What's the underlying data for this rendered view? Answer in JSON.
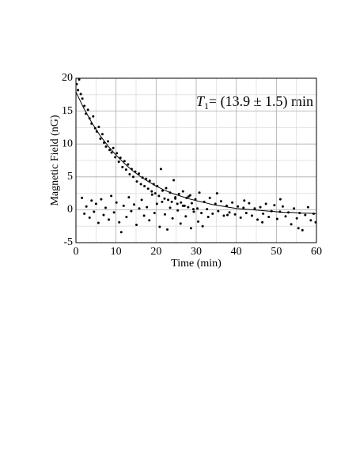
{
  "chart_data": {
    "type": "scatter",
    "xlabel": "Time (min)",
    "ylabel": "Magnetic Field (nG)",
    "annotation": {
      "symbol": "T",
      "subscript": "1",
      "text": "= (13.9 ± 1.5) min"
    },
    "xlim": [
      0,
      60
    ],
    "ylim": [
      -5,
      20
    ],
    "xticks": [
      0,
      10,
      20,
      30,
      40,
      50,
      60
    ],
    "yticks": [
      -5,
      0,
      5,
      10,
      15,
      20
    ],
    "xminorticks": [
      5,
      15,
      25,
      35,
      45,
      55
    ],
    "yminorticks": [
      -2.5,
      2.5,
      7.5,
      12.5,
      17.5
    ],
    "grid": true,
    "color": "#000000",
    "points": {
      "x": [
        0.2,
        0.5,
        0.8,
        1.2,
        1.6,
        2.1,
        2.5,
        3.0,
        3.4,
        3.9,
        4.3,
        4.8,
        5.2,
        5.7,
        6.1,
        6.6,
        7.0,
        7.5,
        8.0,
        8.4,
        8.9,
        9.3,
        9.8,
        10.2,
        10.7,
        11.1,
        11.6,
        12.1,
        12.5,
        13.0,
        13.4,
        13.9,
        14.3,
        14.8,
        15.2,
        15.7,
        16.2,
        16.6,
        17.1,
        17.5,
        18.0,
        18.4,
        18.9,
        19.4,
        19.8,
        20.3,
        20.7,
        21.2,
        21.6,
        22.1,
        22.5,
        23.0,
        23.5,
        23.9,
        24.4,
        24.8,
        25.3,
        25.7,
        26.2,
        26.7,
        27.1,
        27.6,
        28.0,
        28.5,
        28.9,
        29.4,
        29.8,
        30.3,
        30.8,
        31.3,
        32.0,
        32.7,
        33.4,
        34.1,
        34.8,
        35.5,
        36.2,
        36.9,
        37.6,
        38.3,
        39.0,
        39.7,
        40.4,
        41.1,
        41.8,
        42.5,
        43.2,
        43.9,
        44.6,
        45.3,
        46.0,
        46.7,
        47.4,
        48.1,
        48.8,
        49.5,
        50.2,
        50.9,
        51.6,
        52.3,
        53.0,
        53.7,
        54.4,
        55.1,
        55.8,
        56.5,
        57.2,
        57.9,
        58.6,
        59.3,
        59.8,
        1.5,
        2.1,
        2.6,
        3.4,
        3.9,
        4.5,
        5.0,
        5.6,
        6.3,
        6.9,
        7.4,
        8.2,
        8.8,
        9.5,
        10.1,
        10.8,
        11.3,
        11.9,
        12.6,
        13.2,
        13.8,
        14.5,
        15.1,
        15.8,
        16.4,
        17.0,
        17.7,
        18.3,
        19.0,
        19.6,
        20.2,
        20.9,
        21.5,
        22.2,
        22.8,
        23.5,
        24.1,
        24.8,
        25.4,
        26.1,
        26.7,
        27.4,
        28.1,
        28.7,
        29.3,
        30.5,
        31.6,
        33.0,
        35.2,
        37.8,
        42.0,
        46.5,
        51.0,
        55.5
      ],
      "values": [
        19.1,
        18.2,
        19.8,
        17.6,
        16.9,
        15.8,
        14.6,
        15.2,
        13.9,
        13.1,
        14.2,
        12.4,
        11.9,
        12.6,
        10.8,
        11.5,
        10.2,
        9.6,
        10.4,
        9.1,
        8.7,
        9.4,
        8.0,
        8.6,
        7.3,
        7.9,
        6.5,
        7.4,
        6.1,
        6.9,
        5.4,
        6.2,
        5.0,
        5.8,
        4.3,
        5.5,
        3.9,
        4.9,
        3.6,
        4.7,
        3.2,
        4.4,
        2.8,
        3.9,
        2.5,
        3.6,
        2.1,
        6.2,
        2.9,
        1.7,
        3.3,
        1.5,
        2.6,
        1.2,
        4.5,
        1.9,
        0.9,
        2.4,
        1.1,
        2.8,
        0.6,
        1.8,
        0.4,
        2.2,
        1.0,
        -0.3,
        1.6,
        0.2,
        2.6,
        -0.5,
        1.2,
        0.1,
        1.8,
        -0.6,
        0.9,
        -0.2,
        1.3,
        -0.9,
        0.6,
        -0.4,
        1.1,
        -0.7,
        0.5,
        -1.2,
        0.3,
        -0.5,
        1.0,
        -0.9,
        0.2,
        -1.5,
        0.4,
        -0.6,
        0.9,
        -1.1,
        -0.2,
        0.7,
        -1.4,
        -0.3,
        0.5,
        -1.0,
        -0.4,
        -2.2,
        0.2,
        -1.3,
        -0.5,
        -3.1,
        -0.8,
        0.4,
        -1.6,
        -0.6,
        -1.9,
        1.8,
        -0.6,
        0.5,
        -1.2,
        1.4,
        -0.3,
        0.9,
        -2.0,
        1.6,
        -0.8,
        0.3,
        -1.5,
        2.1,
        -0.4,
        1.1,
        -1.9,
        -3.4,
        0.6,
        -1.1,
        1.9,
        -0.2,
        0.8,
        -2.3,
        0.2,
        1.5,
        -0.9,
        0.4,
        -1.6,
        2.3,
        -0.5,
        0.9,
        -2.6,
        1.2,
        -0.7,
        -3.0,
        0.3,
        -1.3,
        1.7,
        -0.1,
        -2.1,
        0.6,
        -1.0,
        2.0,
        -2.8,
        0.1,
        -1.8,
        -2.5,
        -1.1,
        2.5,
        -0.8,
        1.4,
        -1.9,
        1.6,
        -2.8
      ]
    },
    "fit": {
      "x": [
        0,
        2,
        4,
        6,
        8,
        10,
        12,
        14,
        16,
        18,
        20,
        22,
        24,
        26,
        28,
        30,
        32,
        34,
        36,
        38,
        40,
        42,
        44,
        46,
        48,
        50,
        52,
        54,
        56,
        58,
        60
      ],
      "values": [
        17.9,
        15.4,
        13.2,
        11.3,
        9.7,
        8.3,
        7.1,
        6.0,
        5.1,
        4.3,
        3.6,
        3.0,
        2.5,
        2.1,
        1.7,
        1.4,
        1.1,
        0.8,
        0.6,
        0.4,
        0.2,
        0.1,
        0.0,
        -0.1,
        -0.2,
        -0.3,
        -0.4,
        -0.4,
        -0.5,
        -0.5,
        -0.6
      ]
    }
  }
}
